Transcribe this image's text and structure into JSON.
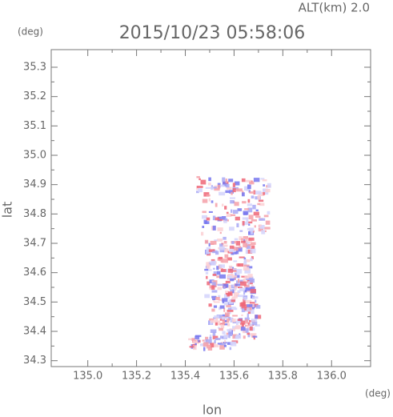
{
  "chart_data": {
    "type": "image",
    "title": "2015/10/23 05:58:06",
    "annotation": "ALT(km) 2.0",
    "x_label": "lon",
    "y_label": "lat",
    "x_unit": "(deg)",
    "y_unit": "(deg)",
    "xlim": [
      134.85,
      136.16
    ],
    "ylim": [
      34.28,
      35.36
    ],
    "xticks": [
      {
        "value": 135.0,
        "label": "135.0"
      },
      135.2,
      135.4,
      135.6,
      135.8,
      {
        "value": 136.0,
        "label": "136.0"
      }
    ],
    "yticks": [
      34.3,
      34.4,
      34.5,
      34.6,
      34.7,
      34.8,
      34.9,
      {
        "value": 35.0,
        "label": "35.0"
      },
      35.1,
      35.2,
      35.3
    ]
  }
}
